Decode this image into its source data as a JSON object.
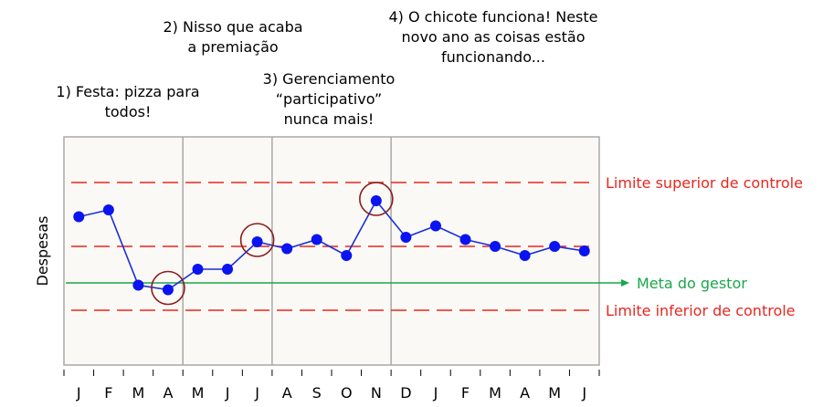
{
  "chart_data": {
    "type": "line",
    "ylabel": "Despesas",
    "categories": [
      "J",
      "F",
      "M",
      "A",
      "M",
      "J",
      "J",
      "A",
      "S",
      "O",
      "N",
      "D",
      "J",
      "F",
      "M",
      "A",
      "M",
      "J"
    ],
    "series": [
      {
        "values": [
          65,
          68,
          35,
          33,
          42,
          42,
          54,
          51,
          55,
          48,
          72,
          56,
          61,
          55,
          52,
          48,
          52,
          50
        ]
      }
    ],
    "ylim": [
      0,
      100
    ],
    "reference_lines": [
      {
        "label": "Limite superior de controle",
        "value": 80,
        "color": "#e8271f",
        "style": "dashed"
      },
      {
        "label": "",
        "value": 52,
        "color": "#e8271f",
        "style": "dashed"
      },
      {
        "label": "Meta do gestor",
        "value": 36,
        "color": "#19a84a",
        "style": "solid-arrow"
      },
      {
        "label": "Limite inferior de controle",
        "value": 24,
        "color": "#e8271f",
        "style": "dashed"
      }
    ],
    "phase_dividers_after_index": [
      3,
      6,
      10
    ],
    "highlighted_points": [
      3,
      6,
      10
    ],
    "annotations": [
      {
        "lines": [
          "1) Festa: pizza para",
          "todos!"
        ]
      },
      {
        "lines": [
          "2) Nisso que acaba",
          "a premiação"
        ]
      },
      {
        "lines": [
          "3) Gerenciamento",
          "“participativo”",
          "nunca mais!"
        ]
      },
      {
        "lines": [
          "4) O chicote funciona! Neste",
          "novo ano as coisas estão",
          "funcionando..."
        ]
      }
    ],
    "colors": {
      "plot_background": "#fbf9f6",
      "frame": "#a9a9a9",
      "series_line": "#1a2fd6",
      "series_marker": "#0a14f0",
      "highlight_circle": "#8b1d1d",
      "control_limit": "#e8271f",
      "goal_line": "#19a84a"
    }
  }
}
